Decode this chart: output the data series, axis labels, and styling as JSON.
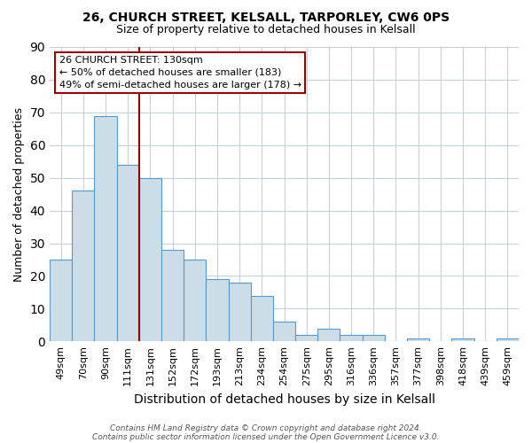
{
  "title1": "26, CHURCH STREET, KELSALL, TARPORLEY, CW6 0PS",
  "title2": "Size of property relative to detached houses in Kelsall",
  "xlabel": "Distribution of detached houses by size in Kelsall",
  "ylabel": "Number of detached properties",
  "categories": [
    "49sqm",
    "70sqm",
    "90sqm",
    "111sqm",
    "131sqm",
    "152sqm",
    "172sqm",
    "193sqm",
    "213sqm",
    "234sqm",
    "254sqm",
    "275sqm",
    "295sqm",
    "316sqm",
    "336sqm",
    "357sqm",
    "377sqm",
    "398sqm",
    "418sqm",
    "439sqm",
    "459sqm"
  ],
  "values": [
    25,
    46,
    69,
    54,
    50,
    28,
    25,
    19,
    18,
    14,
    6,
    2,
    4,
    2,
    2,
    0,
    1,
    0,
    1,
    0,
    1
  ],
  "bar_color": "#ccdde8",
  "bar_edge_color": "#5599cc",
  "vline_index": 4,
  "vline_color": "#990000",
  "annotation_line1": "26 CHURCH STREET: 130sqm",
  "annotation_line2": "← 50% of detached houses are smaller (183)",
  "annotation_line3": "49% of semi-detached houses are larger (178) →",
  "annotation_box_facecolor": "#ffffff",
  "annotation_box_edgecolor": "#990000",
  "ylim": [
    0,
    90
  ],
  "yticks": [
    0,
    10,
    20,
    30,
    40,
    50,
    60,
    70,
    80,
    90
  ],
  "footnote1": "Contains HM Land Registry data © Crown copyright and database right 2024.",
  "footnote2": "Contains public sector information licensed under the Open Government Licence v3.0.",
  "bg_color": "#ffffff",
  "grid_color": "#c5d0dc",
  "title1_fontsize": 10,
  "title2_fontsize": 9,
  "xlabel_fontsize": 10,
  "ylabel_fontsize": 9,
  "tick_fontsize": 8,
  "annot_fontsize": 8,
  "footnote_fontsize": 6.5
}
